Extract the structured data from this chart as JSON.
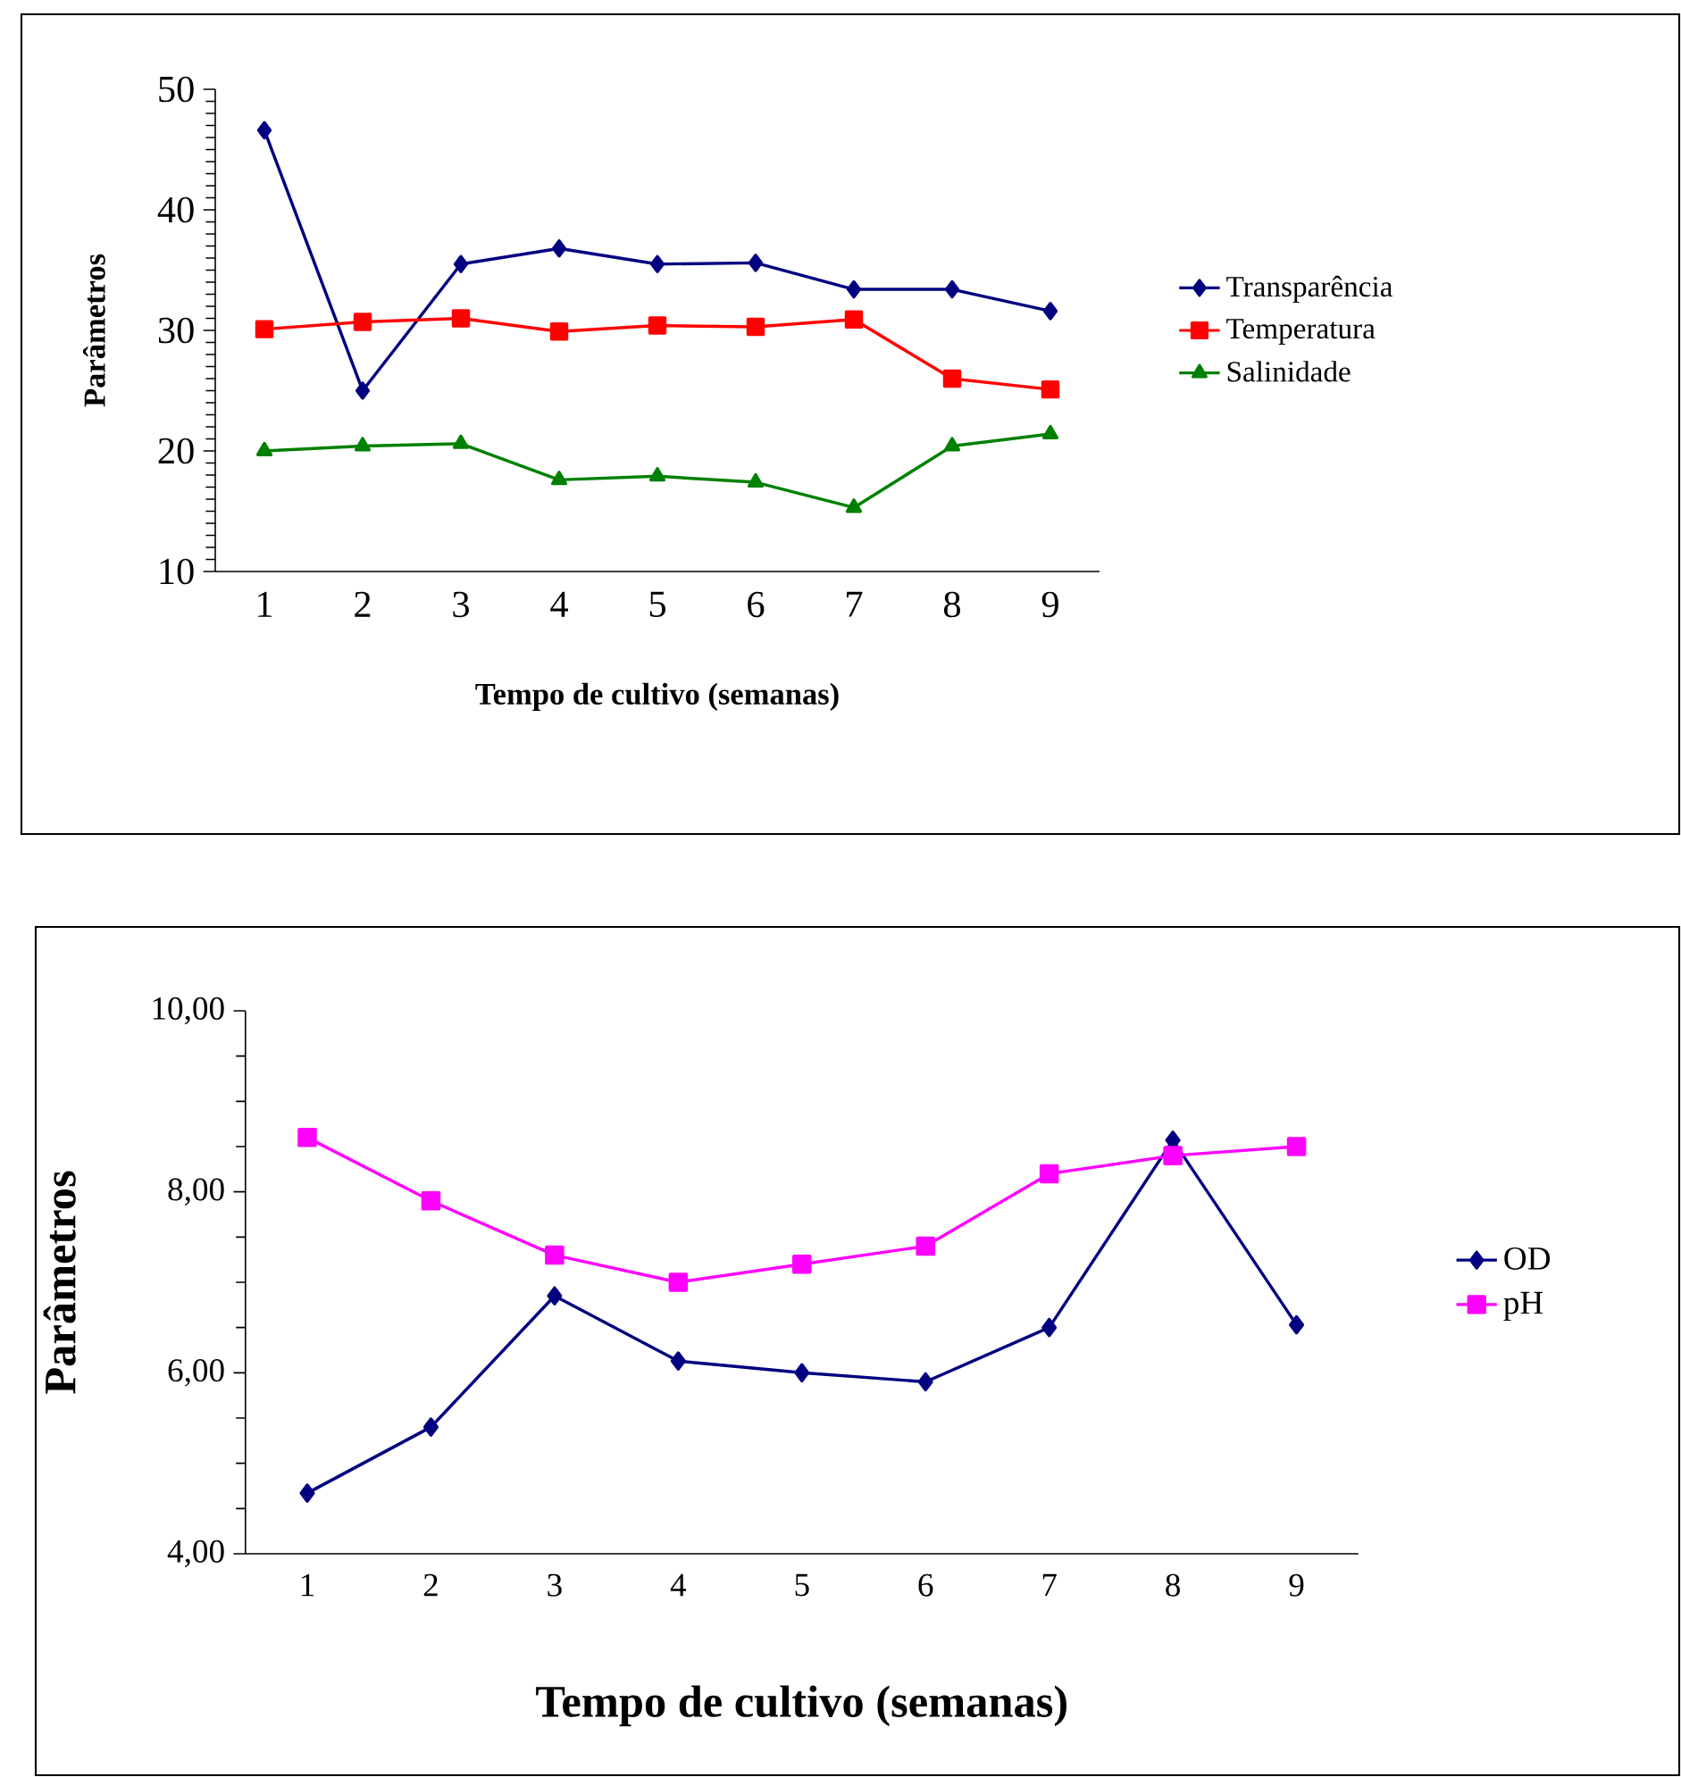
{
  "chart_data": [
    {
      "type": "line",
      "xlabel": "Tempo de cultivo (semanas)",
      "ylabel": "Parâmetros",
      "categories": [
        "1",
        "2",
        "3",
        "4",
        "5",
        "6",
        "7",
        "8",
        "9"
      ],
      "series": [
        {
          "name": "Transparência",
          "color": "#000080",
          "marker": "diamond",
          "values": [
            46.6,
            25.0,
            35.5,
            36.8,
            35.5,
            35.6,
            33.4,
            33.4,
            31.6
          ]
        },
        {
          "name": "Temperatura",
          "color": "#ff0000",
          "marker": "square",
          "values": [
            30.1,
            30.7,
            31.0,
            29.9,
            30.4,
            30.3,
            30.9,
            26.0,
            25.1
          ]
        },
        {
          "name": "Salinidade",
          "color": "#008000",
          "marker": "triangle",
          "values": [
            20.0,
            20.4,
            20.6,
            17.6,
            17.9,
            17.4,
            15.3,
            20.4,
            21.4
          ]
        }
      ],
      "ylim": [
        10,
        50
      ],
      "yticks": [
        10,
        20,
        30,
        40,
        50
      ],
      "grid": false,
      "legend": "right"
    },
    {
      "type": "line",
      "xlabel": "Tempo de cultivo (semanas)",
      "ylabel": "Parâmetros",
      "categories": [
        "1",
        "2",
        "3",
        "4",
        "5",
        "6",
        "7",
        "8",
        "9"
      ],
      "series": [
        {
          "name": "OD",
          "color": "#000080",
          "marker": "diamond",
          "values": [
            4.67,
            5.4,
            6.85,
            6.13,
            6.0,
            5.9,
            6.5,
            8.57,
            6.53
          ]
        },
        {
          "name": "pH",
          "color": "#ff00ff",
          "marker": "square",
          "values": [
            8.6,
            7.9,
            7.3,
            7.0,
            7.2,
            7.4,
            8.2,
            8.4,
            8.5
          ]
        }
      ],
      "ylim": [
        4,
        10
      ],
      "yticks": [
        {
          "value": 4,
          "label": "4,00"
        },
        {
          "value": 6,
          "label": "6,00"
        },
        {
          "value": 8,
          "label": "8,00"
        },
        {
          "value": 10,
          "label": "10,00"
        }
      ],
      "grid": false,
      "legend": "right"
    }
  ]
}
